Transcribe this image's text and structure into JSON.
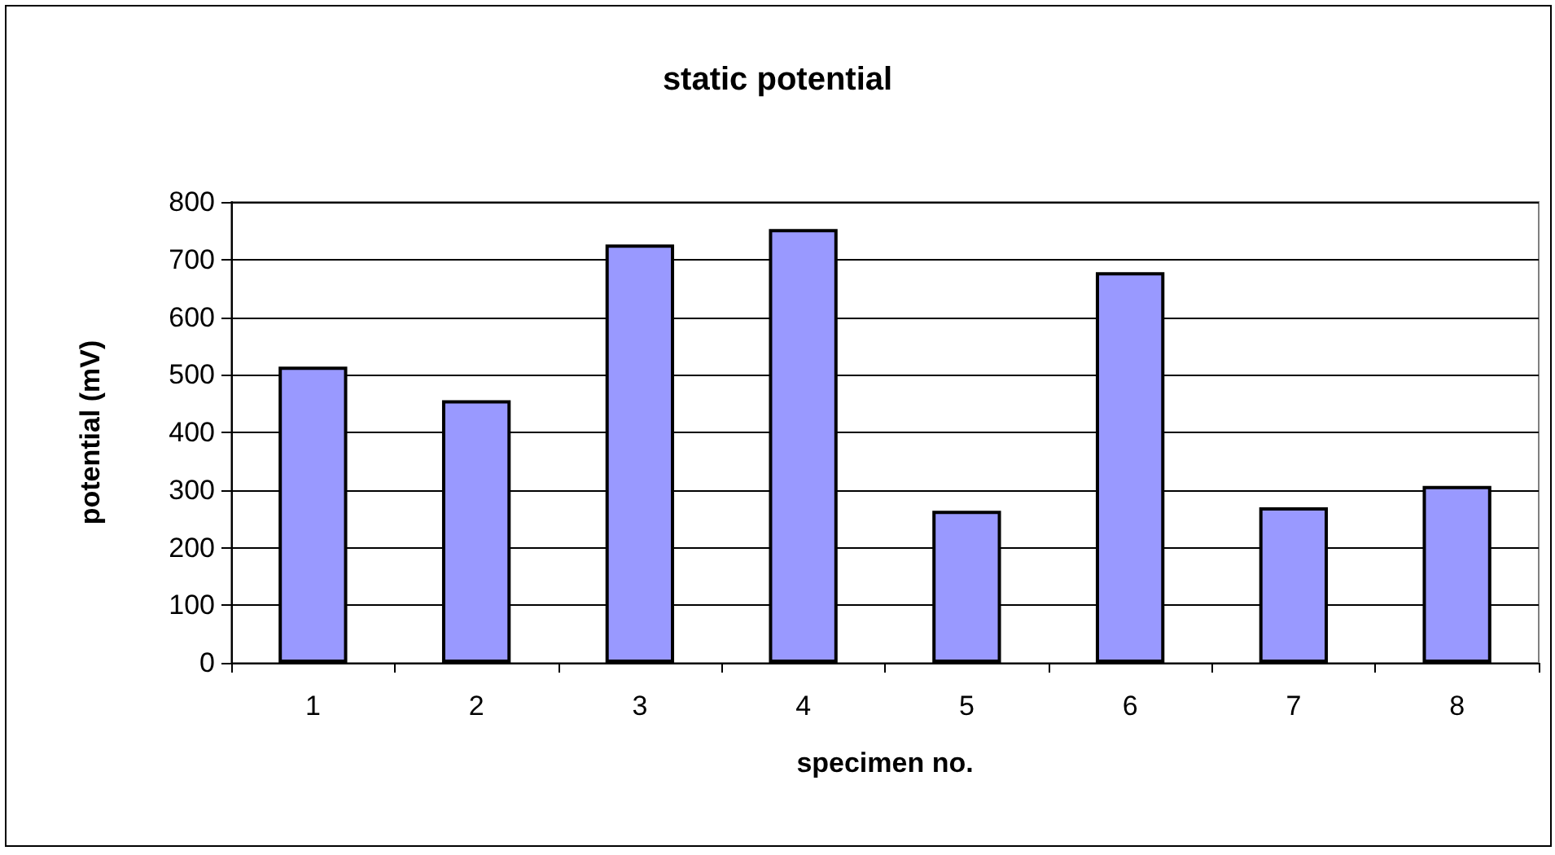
{
  "chart_data": {
    "type": "bar",
    "title": "static potential",
    "xlabel": "specimen no.",
    "ylabel": "potential (mV)",
    "categories": [
      "1",
      "2",
      "3",
      "4",
      "5",
      "6",
      "7",
      "8"
    ],
    "values": [
      514,
      456,
      726,
      753,
      264,
      678,
      270,
      307
    ],
    "color": "#9999ff",
    "ylim": [
      0,
      800
    ],
    "yticks": [
      0,
      100,
      200,
      300,
      400,
      500,
      600,
      700,
      800
    ],
    "grid": "y"
  }
}
